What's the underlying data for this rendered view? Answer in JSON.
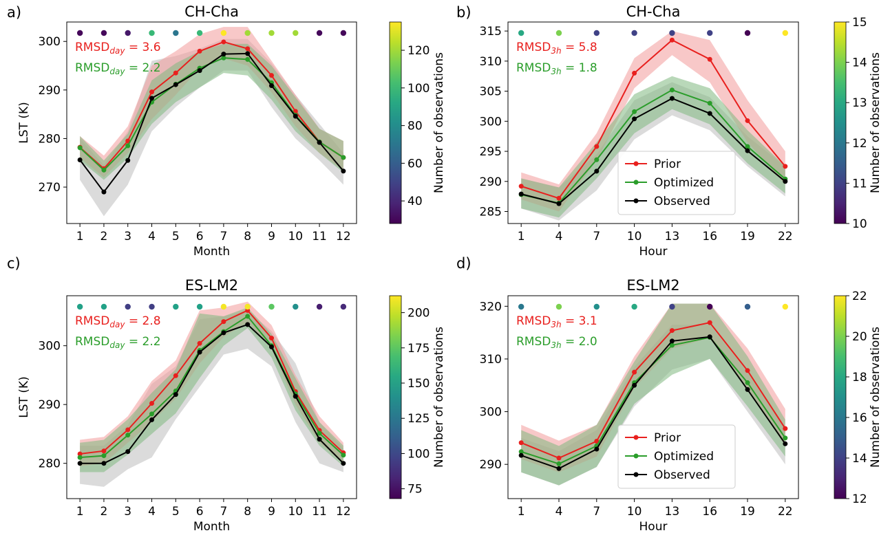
{
  "colorbar_label": "Number of observations",
  "legend_labels": {
    "prior": "Prior",
    "optimized": "Optimized",
    "observed": "Observed"
  },
  "colors": {
    "prior": "#e8201e",
    "optimized": "#2a9d2a",
    "observed": "#000000",
    "prior_band": "#f29a9a",
    "optimized_band": "#7fb87f",
    "observed_band": "#bdbdbd"
  },
  "colormap": "viridis",
  "chart_data": [
    {
      "panel_label": "a)",
      "type": "line",
      "title": "CH-Cha",
      "xlabel": "Month",
      "ylabel": "LST (K)",
      "x": [
        1,
        2,
        3,
        4,
        5,
        6,
        7,
        8,
        9,
        10,
        11,
        12
      ],
      "xticks": [
        "1",
        "2",
        "3",
        "4",
        "5",
        "6",
        "7",
        "8",
        "9",
        "10",
        "11",
        "12"
      ],
      "yticks": [
        270,
        280,
        290,
        300
      ],
      "ylim": [
        262.5,
        304
      ],
      "series": [
        {
          "name": "Prior",
          "values": [
            278.2,
            273.8,
            279.5,
            289.6,
            293.5,
            298.0,
            299.9,
            298.5,
            293.0,
            285.6,
            279.3,
            276.1
          ],
          "lower": [
            276.0,
            272.0,
            277.0,
            284.0,
            289.0,
            294.5,
            296.5,
            295.0,
            289.5,
            282.5,
            277.0,
            273.5
          ],
          "upper": [
            280.5,
            276.5,
            282.5,
            295.0,
            298.0,
            301.5,
            303.0,
            303.0,
            296.0,
            289.0,
            282.0,
            279.5
          ]
        },
        {
          "name": "Optimized",
          "values": [
            278.1,
            273.5,
            278.5,
            287.5,
            291.2,
            294.5,
            296.6,
            296.3,
            291.5,
            284.8,
            279.3,
            276.1
          ],
          "lower": [
            275.5,
            271.5,
            276.0,
            283.0,
            287.5,
            290.5,
            293.5,
            293.0,
            288.0,
            281.5,
            277.0,
            273.0
          ],
          "upper": [
            280.5,
            275.5,
            281.0,
            292.0,
            295.5,
            298.0,
            299.5,
            299.5,
            295.0,
            288.5,
            282.0,
            279.5
          ]
        },
        {
          "name": "Observed",
          "values": [
            275.6,
            269.0,
            275.5,
            288.3,
            291.1,
            294.0,
            297.4,
            297.5,
            290.9,
            284.6,
            279.2,
            273.3
          ],
          "lower": [
            271.5,
            264.0,
            270.5,
            281.5,
            286.5,
            290.5,
            294.0,
            294.0,
            286.5,
            280.0,
            275.5,
            270.5
          ],
          "upper": [
            280.0,
            274.5,
            281.5,
            296.0,
            297.0,
            298.5,
            300.5,
            300.5,
            295.5,
            289.0,
            283.0,
            277.0
          ]
        }
      ],
      "annotations": [
        {
          "text": "RMSD",
          "sub": "day",
          "value": "= 3.6",
          "color": "prior"
        },
        {
          "text": "RMSD",
          "sub": "day",
          "value": "= 2.2",
          "color": "optimized"
        }
      ],
      "obs_counts": [
        30,
        30,
        35,
        100,
        70,
        100,
        135,
        120,
        120,
        120,
        30,
        30
      ],
      "colorbar": {
        "min": 28,
        "max": 135,
        "ticks": [
          40,
          60,
          80,
          100,
          120
        ]
      },
      "legend": false
    },
    {
      "panel_label": "b)",
      "type": "line",
      "title": "CH-Cha",
      "xlabel": "Hour",
      "ylabel": "",
      "x": [
        1,
        4,
        7,
        10,
        13,
        16,
        19,
        22
      ],
      "xticks": [
        "1",
        "4",
        "7",
        "10",
        "13",
        "16",
        "19",
        "22"
      ],
      "yticks": [
        285,
        290,
        295,
        300,
        305,
        310,
        315
      ],
      "ylim": [
        283,
        316.5
      ],
      "series": [
        {
          "name": "Prior",
          "values": [
            289.2,
            287.2,
            295.8,
            308.0,
            313.5,
            310.3,
            300.1,
            292.5
          ],
          "lower": [
            287.0,
            285.0,
            293.5,
            305.5,
            311.0,
            306.5,
            296.5,
            289.5
          ],
          "upper": [
            291.5,
            289.5,
            298.0,
            310.5,
            315.0,
            313.5,
            303.5,
            295.0
          ]
        },
        {
          "name": "Optimized",
          "values": [
            287.8,
            286.4,
            293.6,
            301.6,
            305.2,
            303.0,
            295.8,
            290.4
          ],
          "lower": [
            285.5,
            284.0,
            290.5,
            298.0,
            302.0,
            299.5,
            293.0,
            288.0
          ],
          "upper": [
            290.5,
            289.0,
            296.5,
            304.5,
            307.5,
            305.5,
            298.5,
            292.5
          ]
        },
        {
          "name": "Observed",
          "values": [
            287.9,
            286.3,
            291.7,
            300.4,
            303.8,
            301.3,
            295.1,
            290.0
          ],
          "lower": [
            285.5,
            283.5,
            288.5,
            297.0,
            301.0,
            298.5,
            292.5,
            287.5
          ],
          "upper": [
            290.5,
            289.0,
            294.5,
            303.5,
            306.5,
            304.0,
            297.5,
            292.5
          ]
        }
      ],
      "annotations": [
        {
          "text": "RMSD",
          "sub": "3h",
          "value": "= 5.8",
          "color": "prior"
        },
        {
          "text": "RMSD",
          "sub": "3h",
          "value": "= 1.8",
          "color": "optimized"
        }
      ],
      "obs_counts": [
        13,
        14,
        11,
        11,
        11,
        11,
        10,
        15
      ],
      "colorbar": {
        "min": 10,
        "max": 15,
        "ticks": [
          10,
          11,
          12,
          13,
          14,
          15
        ]
      },
      "legend": true
    },
    {
      "panel_label": "c)",
      "type": "line",
      "title": "ES-LM2",
      "xlabel": "Month",
      "ylabel": "LST (K)",
      "x": [
        1,
        2,
        3,
        4,
        5,
        6,
        7,
        8,
        9,
        10,
        11,
        12
      ],
      "xticks": [
        "1",
        "2",
        "3",
        "4",
        "5",
        "6",
        "7",
        "8",
        "9",
        "10",
        "11",
        "12"
      ],
      "yticks": [
        280,
        290,
        300
      ],
      "ylim": [
        274,
        308.5
      ],
      "series": [
        {
          "name": "Prior",
          "values": [
            281.6,
            282.1,
            285.7,
            290.2,
            294.9,
            300.4,
            304.1,
            306.0,
            301.3,
            292.2,
            285.6,
            281.8
          ],
          "lower": [
            279.5,
            280.0,
            283.5,
            287.0,
            291.0,
            297.0,
            301.5,
            304.0,
            299.5,
            290.0,
            283.5,
            280.0
          ],
          "upper": [
            284.0,
            284.5,
            288.0,
            294.0,
            297.5,
            306.0,
            306.5,
            307.5,
            303.5,
            295.0,
            288.0,
            283.5
          ]
        },
        {
          "name": "Optimized",
          "values": [
            281.0,
            281.3,
            284.8,
            288.4,
            292.3,
            299.2,
            302.4,
            305.0,
            300.0,
            291.8,
            285.1,
            281.4
          ],
          "lower": [
            278.5,
            278.5,
            281.5,
            285.0,
            288.5,
            294.5,
            300.0,
            303.0,
            298.0,
            289.0,
            283.0,
            279.5
          ],
          "upper": [
            283.5,
            284.0,
            287.5,
            292.0,
            296.0,
            305.5,
            305.0,
            306.5,
            302.0,
            294.5,
            287.0,
            283.0
          ]
        },
        {
          "name": "Observed",
          "values": [
            280.0,
            280.0,
            282.0,
            287.4,
            291.7,
            298.9,
            302.2,
            303.6,
            299.8,
            291.4,
            284.1,
            280.0
          ],
          "lower": [
            276.5,
            276.0,
            279.0,
            281.0,
            287.5,
            293.0,
            298.5,
            299.5,
            296.5,
            287.0,
            280.0,
            278.5
          ],
          "upper": [
            283.0,
            283.0,
            286.5,
            293.5,
            296.5,
            304.5,
            305.0,
            306.0,
            302.5,
            297.0,
            287.0,
            282.5
          ]
        }
      ],
      "annotations": [
        {
          "text": "RMSD",
          "sub": "day",
          "value": "= 2.8",
          "color": "prior"
        },
        {
          "text": "RMSD",
          "sub": "day",
          "value": "= 2.2",
          "color": "optimized"
        }
      ],
      "obs_counts": [
        150,
        150,
        95,
        95,
        150,
        150,
        210,
        210,
        175,
        140,
        80,
        85
      ],
      "colorbar": {
        "min": 68,
        "max": 212,
        "ticks": [
          75,
          100,
          125,
          150,
          175,
          200
        ]
      },
      "legend": false
    },
    {
      "panel_label": "d)",
      "type": "line",
      "title": "ES-LM2",
      "xlabel": "Hour",
      "ylabel": "",
      "x": [
        1,
        4,
        7,
        10,
        13,
        16,
        19,
        22
      ],
      "xticks": [
        "1",
        "4",
        "7",
        "10",
        "13",
        "16",
        "19",
        "22"
      ],
      "yticks": [
        290,
        300,
        310,
        320
      ],
      "ylim": [
        283.5,
        322
      ],
      "series": [
        {
          "name": "Prior",
          "values": [
            294.1,
            291.2,
            294.4,
            307.5,
            315.4,
            316.9,
            307.8,
            296.8
          ],
          "lower": [
            291.0,
            288.5,
            291.5,
            304.5,
            312.0,
            314.0,
            304.5,
            293.5
          ],
          "upper": [
            297.5,
            294.5,
            297.5,
            310.5,
            320.5,
            320.5,
            312.0,
            300.5
          ]
        },
        {
          "name": "Optimized",
          "values": [
            292.4,
            290.1,
            293.5,
            305.5,
            312.6,
            314.1,
            305.5,
            295.0
          ],
          "lower": [
            288.5,
            286.0,
            289.5,
            301.5,
            307.0,
            310.0,
            301.0,
            291.5
          ],
          "upper": [
            296.5,
            293.5,
            297.5,
            309.5,
            320.5,
            320.5,
            310.5,
            298.5
          ]
        },
        {
          "name": "Observed",
          "values": [
            291.7,
            289.2,
            292.9,
            305.0,
            313.4,
            314.2,
            304.2,
            293.9
          ],
          "lower": [
            288.5,
            286.0,
            289.5,
            301.0,
            308.0,
            310.0,
            300.0,
            290.0
          ],
          "upper": [
            295.0,
            292.5,
            296.5,
            308.5,
            316.5,
            316.5,
            307.5,
            296.5
          ]
        }
      ],
      "annotations": [
        {
          "text": "RMSD",
          "sub": "3h",
          "value": "= 3.1",
          "color": "prior"
        },
        {
          "text": "RMSD",
          "sub": "3h",
          "value": "= 2.0",
          "color": "optimized"
        }
      ],
      "obs_counts": [
        16,
        20,
        17,
        18,
        14,
        12,
        15,
        22
      ],
      "colorbar": {
        "min": 12,
        "max": 22,
        "ticks": [
          12,
          14,
          16,
          18,
          20,
          22
        ]
      },
      "legend": true
    }
  ]
}
